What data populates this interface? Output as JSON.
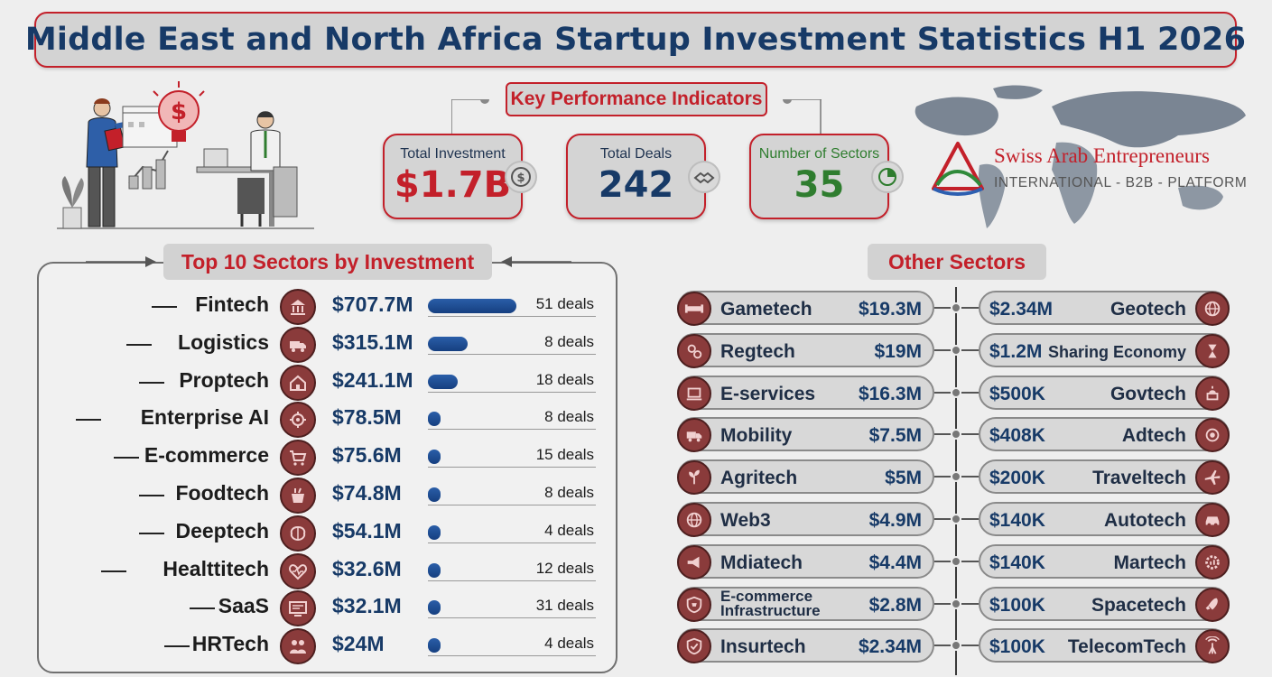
{
  "title": "Middle East and North Africa Startup Investment Statistics H1 2026",
  "kpi": {
    "heading": "Key Performance Indicators",
    "cards": [
      {
        "label": "Total Investment",
        "value": "$1.7B",
        "color": "#c3202a",
        "icon": "dollar-coin-icon"
      },
      {
        "label": "Total Deals",
        "value": "242",
        "color": "#173a67",
        "icon": "handshake-icon"
      },
      {
        "label": "Number of Sectors",
        "value": "35",
        "color": "#2f7d2f",
        "label_color": "#2f7d2f",
        "icon": "pie-chart-icon"
      }
    ]
  },
  "brand": {
    "name": "Swiss Arab Entrepreneurs",
    "tagline": "INTERNATIONAL  -  B2B  -  PLATFORM"
  },
  "top_sectors": {
    "heading": "Top 10 Sectors by Investment",
    "max_value_m": 707.7,
    "rows": [
      {
        "name": "Fintech",
        "amount": "$707.7M",
        "value_m": 707.7,
        "deals": "51 deals",
        "icon": "bank-icon"
      },
      {
        "name": "Logistics",
        "amount": "$315.1M",
        "value_m": 315.1,
        "deals": "8 deals",
        "icon": "truck-icon"
      },
      {
        "name": "Proptech",
        "amount": "$241.1M",
        "value_m": 241.1,
        "deals": "18 deals",
        "icon": "house-icon"
      },
      {
        "name": "Enterprise AI",
        "amount": "$78.5M",
        "value_m": 78.5,
        "deals": "8 deals",
        "icon": "ai-gear-icon"
      },
      {
        "name": "E-commerce",
        "amount": "$75.6M",
        "value_m": 75.6,
        "deals": "15 deals",
        "icon": "cart-icon"
      },
      {
        "name": "Foodtech",
        "amount": "$74.8M",
        "value_m": 74.8,
        "deals": "8 deals",
        "icon": "food-icon"
      },
      {
        "name": "Deeptech",
        "amount": "$54.1M",
        "value_m": 54.1,
        "deals": "4 deals",
        "icon": "brain-icon"
      },
      {
        "name": "Healttitech",
        "amount": "$32.6M",
        "value_m": 32.6,
        "deals": "12 deals",
        "icon": "heart-pulse-icon"
      },
      {
        "name": "SaaS",
        "amount": "$32.1M",
        "value_m": 32.1,
        "deals": "31 deals",
        "icon": "monitor-icon"
      },
      {
        "name": "HRTech",
        "amount": "$24M",
        "value_m": 24,
        "deals": "4 deals",
        "icon": "people-icon"
      }
    ]
  },
  "other_sectors": {
    "heading": "Other Sectors",
    "left": [
      {
        "name": "Gametech",
        "amount": "$19.3M",
        "icon": "gamepad-icon"
      },
      {
        "name": "Regtech",
        "amount": "$19M",
        "icon": "gears-icon"
      },
      {
        "name": "E-services",
        "amount": "$16.3M",
        "icon": "laptop-icon"
      },
      {
        "name": "Mobility",
        "amount": "$7.5M",
        "icon": "truck-icon"
      },
      {
        "name": "Agritech",
        "amount": "$5M",
        "icon": "plant-icon"
      },
      {
        "name": "Web3",
        "amount": "$4.9M",
        "icon": "globe-network-icon"
      },
      {
        "name": "Mdiatech",
        "amount": "$4.4M",
        "icon": "megaphone-icon"
      },
      {
        "name": "E-commerce Infrastructure",
        "name_line1": "E-commerce",
        "name_line2": "Infrastructure",
        "amount": "$2.8M",
        "icon": "shield-cart-icon"
      },
      {
        "name": "Insurtech",
        "amount": "$2.34M",
        "icon": "shield-check-icon"
      }
    ],
    "right": [
      {
        "name": "Geotech",
        "amount": "$2.34M",
        "icon": "globe-icon"
      },
      {
        "name": "Sharing Economy",
        "amount": "$1.2M",
        "icon": "hourglass-icon"
      },
      {
        "name": "Govtech",
        "amount": "$500K",
        "icon": "capitol-icon"
      },
      {
        "name": "Adtech",
        "amount": "$408K",
        "icon": "target-icon"
      },
      {
        "name": "Traveltech",
        "amount": "$200K",
        "icon": "airplane-icon"
      },
      {
        "name": "Autotech",
        "amount": "$140K",
        "icon": "car-icon"
      },
      {
        "name": "Martech",
        "amount": "$140K",
        "icon": "gear-chart-icon"
      },
      {
        "name": "Spacetech",
        "amount": "$100K",
        "icon": "rocket-icon"
      },
      {
        "name": "TelecomTech",
        "amount": "$100K",
        "icon": "antenna-icon"
      }
    ]
  }
}
